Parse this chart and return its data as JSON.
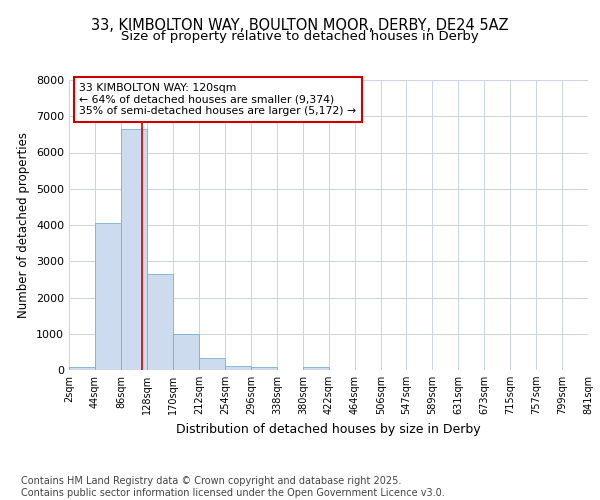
{
  "title1": "33, KIMBOLTON WAY, BOULTON MOOR, DERBY, DE24 5AZ",
  "title2": "Size of property relative to detached houses in Derby",
  "xlabel": "Distribution of detached houses by size in Derby",
  "ylabel": "Number of detached properties",
  "bin_labels": [
    "2sqm",
    "44sqm",
    "86sqm",
    "128sqm",
    "170sqm",
    "212sqm",
    "254sqm",
    "296sqm",
    "338sqm",
    "380sqm",
    "422sqm",
    "464sqm",
    "506sqm",
    "547sqm",
    "589sqm",
    "631sqm",
    "673sqm",
    "715sqm",
    "757sqm",
    "799sqm",
    "841sqm"
  ],
  "bin_edges": [
    2,
    44,
    86,
    128,
    170,
    212,
    254,
    296,
    338,
    380,
    422,
    464,
    506,
    547,
    589,
    631,
    673,
    715,
    757,
    799,
    841
  ],
  "bar_heights": [
    70,
    4050,
    6650,
    2650,
    1000,
    330,
    120,
    70,
    0,
    70,
    0,
    0,
    0,
    0,
    0,
    0,
    0,
    0,
    0,
    0
  ],
  "bar_color": "#ccdcee",
  "bar_edge_color": "#7bafd4",
  "property_size": 120,
  "vline_color": "#cc0000",
  "annotation_line1": "33 KIMBOLTON WAY: 120sqm",
  "annotation_line2": "← 64% of detached houses are smaller (9,374)",
  "annotation_line3": "35% of semi-detached houses are larger (5,172) →",
  "annotation_box_color": "#ffffff",
  "annotation_box_edge": "#cc0000",
  "ylim": [
    0,
    8000
  ],
  "yticks": [
    0,
    1000,
    2000,
    3000,
    4000,
    5000,
    6000,
    7000,
    8000
  ],
  "grid_color": "#c8d4e4",
  "background_color": "#ffffff",
  "plot_bg_color": "#ffffff",
  "footer_text": "Contains HM Land Registry data © Crown copyright and database right 2025.\nContains public sector information licensed under the Open Government Licence v3.0.",
  "title_fontsize": 10.5,
  "subtitle_fontsize": 9.5,
  "annotation_fontsize": 7.8,
  "footer_fontsize": 7.0,
  "ylabel_fontsize": 8.5,
  "xlabel_fontsize": 9.0
}
